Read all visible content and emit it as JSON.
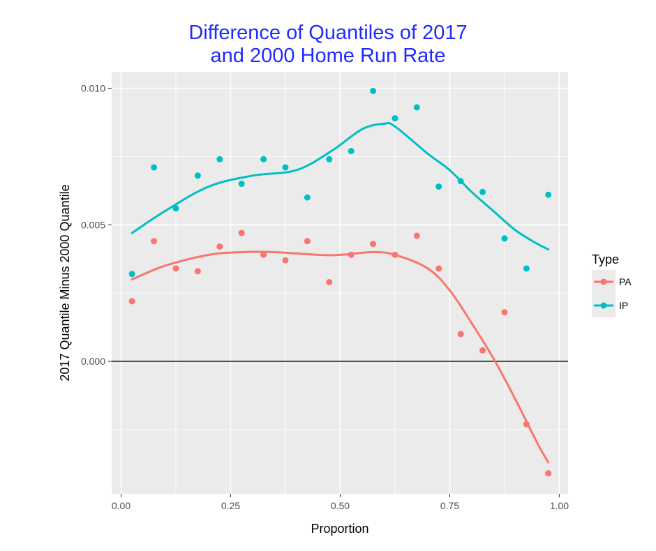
{
  "chart_data": {
    "type": "scatter",
    "title_line1": "Difference of Quantiles of 2017",
    "title_line2": "and 2000 Home Run Rate",
    "title_color": "#1f2bff",
    "xlabel": "Proportion",
    "ylabel": "2017 Quantile Minus 2000 Quantile",
    "xlim": [
      -0.0215,
      1.02
    ],
    "ylim": [
      -0.00485,
      0.0106
    ],
    "x_ticks": [
      0.0,
      0.25,
      0.5,
      0.75,
      1.0
    ],
    "x_tick_labels": [
      "0.00",
      "0.25",
      "0.50",
      "0.75",
      "1.00"
    ],
    "y_ticks": [
      0.0,
      0.005,
      0.01
    ],
    "y_tick_labels": [
      "0.000",
      "0.005",
      "0.010"
    ],
    "reference_line_y": 0.0,
    "grid": true,
    "panel_background": "#ebebeb",
    "legend": {
      "title": "Type",
      "placement": "right"
    },
    "series": [
      {
        "name": "PA",
        "color": "#f8766d",
        "x": [
          0.025,
          0.075,
          0.125,
          0.175,
          0.225,
          0.275,
          0.325,
          0.375,
          0.425,
          0.475,
          0.525,
          0.575,
          0.625,
          0.675,
          0.725,
          0.775,
          0.825,
          0.875,
          0.925,
          0.975
        ],
        "y": [
          0.0022,
          0.0044,
          0.0034,
          0.0033,
          0.0042,
          0.0047,
          0.0039,
          0.0037,
          0.0044,
          0.0029,
          0.0039,
          0.0043,
          0.0039,
          0.0046,
          0.0034,
          0.001,
          0.0004,
          0.0018,
          -0.0023,
          -0.0041
        ],
        "smooth_x": [
          0.025,
          0.1,
          0.2,
          0.275,
          0.35,
          0.45,
          0.5,
          0.575,
          0.625,
          0.7,
          0.75,
          0.8,
          0.85,
          0.9,
          0.95,
          0.975
        ],
        "smooth_y": [
          0.003,
          0.0035,
          0.0039,
          0.004,
          0.004,
          0.0039,
          0.0039,
          0.004,
          0.0039,
          0.0034,
          0.0026,
          0.0014,
          0.0001,
          -0.0014,
          -0.003,
          -0.0037
        ]
      },
      {
        "name": "IP",
        "color": "#00bfc4",
        "x": [
          0.025,
          0.075,
          0.125,
          0.175,
          0.225,
          0.275,
          0.325,
          0.375,
          0.425,
          0.475,
          0.525,
          0.575,
          0.625,
          0.675,
          0.725,
          0.775,
          0.825,
          0.875,
          0.925,
          0.975
        ],
        "y": [
          0.0032,
          0.0071,
          0.0056,
          0.0068,
          0.0074,
          0.0065,
          0.0074,
          0.0071,
          0.006,
          0.0074,
          0.0077,
          0.0099,
          0.0089,
          0.0093,
          0.0064,
          0.0066,
          0.0062,
          0.0045,
          0.0034,
          0.0061
        ],
        "smooth_x": [
          0.025,
          0.1,
          0.2,
          0.3,
          0.4,
          0.48,
          0.55,
          0.6,
          0.625,
          0.7,
          0.75,
          0.8,
          0.85,
          0.9,
          0.95,
          0.975
        ],
        "smooth_y": [
          0.0047,
          0.0055,
          0.0064,
          0.0068,
          0.007,
          0.0077,
          0.0085,
          0.0087,
          0.0086,
          0.0076,
          0.007,
          0.0062,
          0.0055,
          0.0048,
          0.0043,
          0.0041
        ]
      }
    ]
  }
}
